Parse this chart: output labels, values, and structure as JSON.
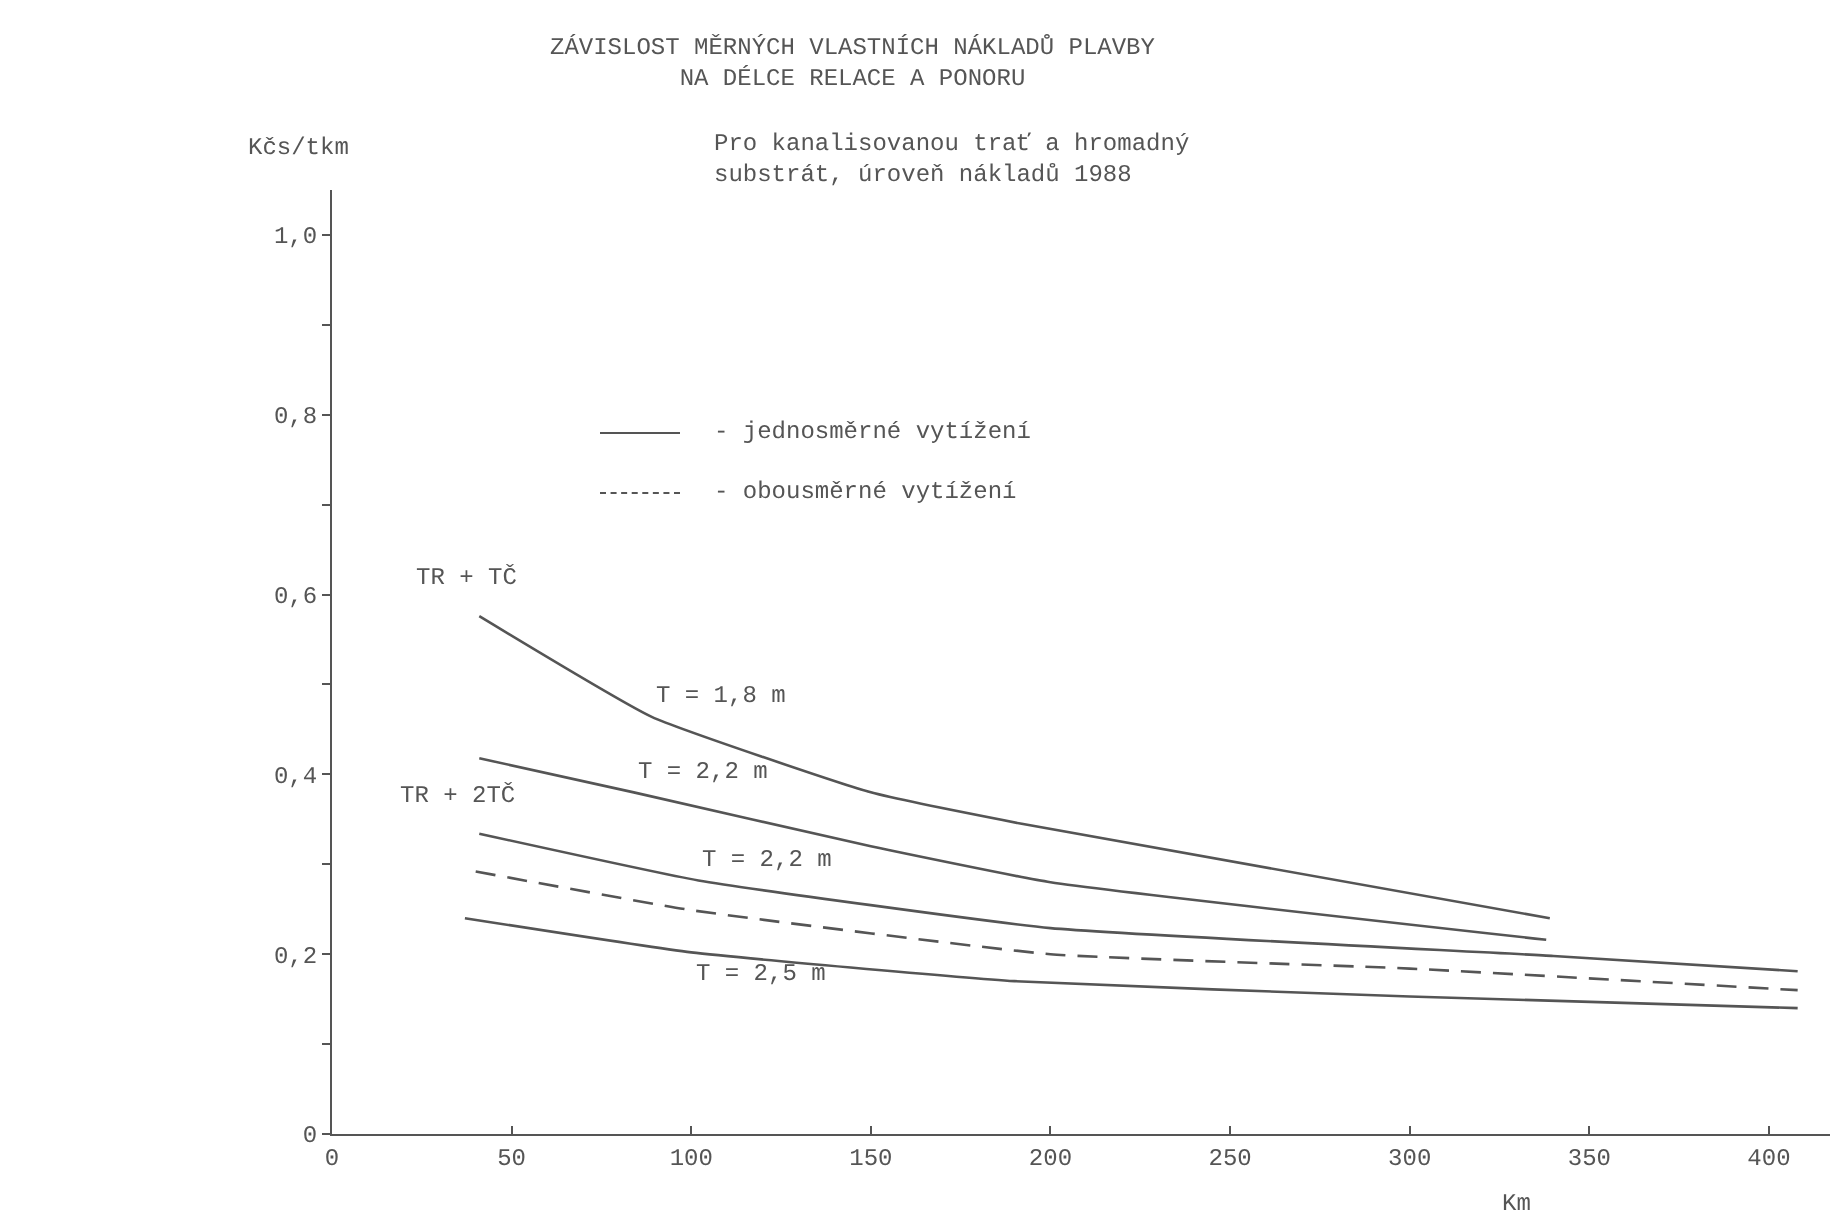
{
  "chart_data": {
    "type": "line",
    "title": "ZÁVISLOST MĚRNÝCH VLASTNÍCH NÁKLADŮ PLAVBY\nNA DÉLCE RELACE A PONORU",
    "subtitle": "Pro kanalisovanou trať a hromadný\nsubstrát, úroveň nákladů 1988",
    "xlabel": "Km",
    "ylabel": "Kčs/tkm",
    "series": [
      {
        "name": "T = 1,8 m",
        "color": "#555555",
        "line_style": "solid",
        "x": [
          41,
          89,
          150,
          192,
          339
        ],
        "values": [
          0.576,
          0.464,
          0.38,
          0.345,
          0.24
        ]
      },
      {
        "name": "T = 2,2 m",
        "color": "#555555",
        "line_style": "solid",
        "x": [
          41,
          84,
          150,
          200,
          338
        ],
        "values": [
          0.418,
          0.38,
          0.32,
          0.28,
          0.216
        ]
      },
      {
        "name": "T = 2,2 m",
        "color": "#555555",
        "line_style": "solid",
        "x": [
          41,
          102,
          200,
          340,
          408
        ],
        "values": [
          0.334,
          0.282,
          0.229,
          0.198,
          0.181
        ]
      },
      {
        "color": "#555555",
        "line_style": "dashed",
        "x": [
          40,
          100,
          200,
          300,
          408
        ],
        "values": [
          0.292,
          0.249,
          0.2,
          0.184,
          0.16
        ]
      },
      {
        "name": "T = 2,5 m",
        "color": "#555555",
        "line_style": "solid",
        "x": [
          37,
          100,
          190,
          300,
          408
        ],
        "values": [
          0.24,
          0.202,
          0.17,
          0.153,
          0.14
        ]
      }
    ],
    "annotations": [
      "TR + TČ",
      "TR + 2TČ",
      "- jednosměrné vytížení",
      "- obousměrné vytížení"
    ],
    "xlim": [
      0,
      417
    ],
    "ylim": [
      0,
      1.05
    ],
    "xticks": [
      0,
      50,
      100,
      150,
      200,
      250,
      300,
      350,
      400
    ],
    "yticks": [
      {
        "value": 0,
        "label": "0"
      },
      {
        "value": 0.1,
        "label": null
      },
      {
        "value": 0.2,
        "label": "0,2"
      },
      {
        "value": 0.3,
        "label": null
      },
      {
        "value": 0.4,
        "label": "0,4"
      },
      {
        "value": 0.5,
        "label": null
      },
      {
        "value": 0.6,
        "label": "0,6"
      },
      {
        "value": 0.7,
        "label": null
      },
      {
        "value": 0.8,
        "label": "0,8"
      },
      {
        "value": 0.9,
        "label": null
      },
      {
        "value": 1.0,
        "label": "1,0"
      }
    ],
    "grid": false,
    "legend": false,
    "marker": "none"
  }
}
